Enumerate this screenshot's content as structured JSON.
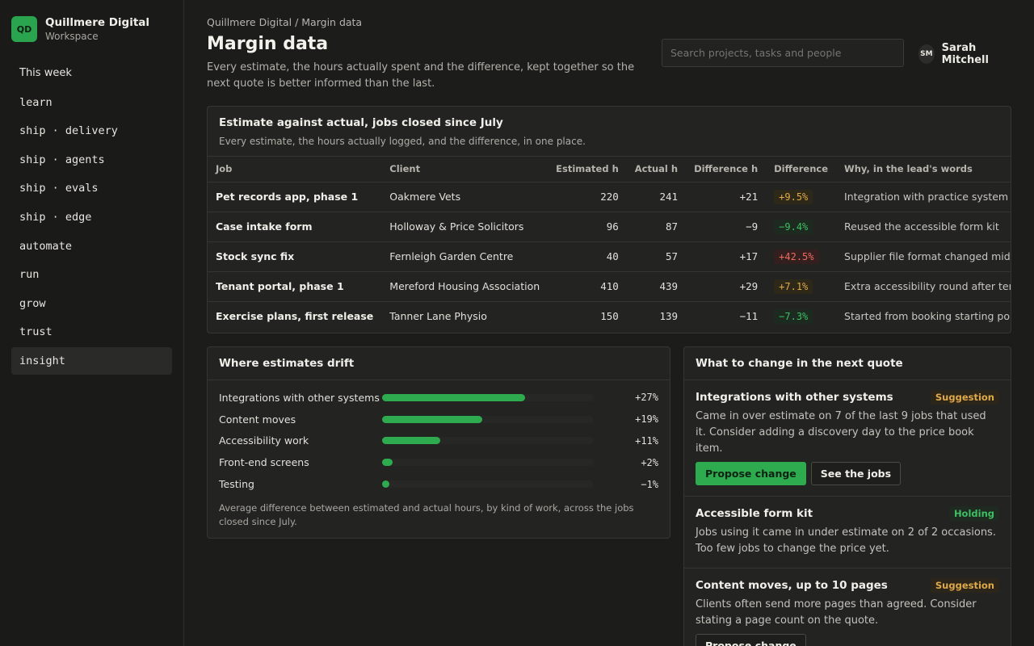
{
  "brand": {
    "initials": "QD",
    "name": "Quillmere Digital",
    "sub": "Workspace"
  },
  "nav": [
    {
      "label": "This week",
      "plain": true
    },
    {
      "label": "learn"
    },
    {
      "label": "ship · delivery"
    },
    {
      "label": "ship · agents"
    },
    {
      "label": "ship · evals"
    },
    {
      "label": "ship · edge"
    },
    {
      "label": "automate"
    },
    {
      "label": "run"
    },
    {
      "label": "grow"
    },
    {
      "label": "trust"
    },
    {
      "label": "insight",
      "active": true
    }
  ],
  "header": {
    "breadcrumb": "Quillmere Digital / Margin data",
    "title": "Margin data",
    "intro": "Every estimate, the hours actually spent and the difference, kept together so the next quote is better informed than the last.",
    "search_placeholder": "Search projects, tasks and people",
    "user_initials": "SM",
    "user_name": "Sarah Mitchell"
  },
  "jobs_card": {
    "title": "Estimate against actual, jobs closed since July",
    "subtitle": "Every estimate, the hours actually logged, and the difference, in one place.",
    "columns": [
      "Job",
      "Client",
      "Estimated h",
      "Actual h",
      "Difference h",
      "Difference",
      "Why, in the lead's words"
    ],
    "rows": [
      {
        "job": "Pet records app, phase 1",
        "client": "Oakmere Vets",
        "estimated": "220",
        "actual": "241",
        "diff_h": "+21",
        "diff_pct": "+9.5%",
        "tone": "amber",
        "why": "Integration with practice system took longer"
      },
      {
        "job": "Case intake form",
        "client": "Holloway & Price Solicitors",
        "estimated": "96",
        "actual": "87",
        "diff_h": "−9",
        "diff_pct": "−9.4%",
        "tone": "green",
        "why": "Reused the accessible form kit"
      },
      {
        "job": "Stock sync fix",
        "client": "Fernleigh Garden Centre",
        "estimated": "40",
        "actual": "57",
        "diff_h": "+17",
        "diff_pct": "+42.5%",
        "tone": "red",
        "why": "Supplier file format changed mid-job"
      },
      {
        "job": "Tenant portal, phase 1",
        "client": "Mereford Housing Association",
        "estimated": "410",
        "actual": "439",
        "diff_h": "+29",
        "diff_pct": "+7.1%",
        "tone": "amber",
        "why": "Extra accessibility round after tenant testing"
      },
      {
        "job": "Exercise plans, first release",
        "client": "Tanner Lane Physio",
        "estimated": "150",
        "actual": "139",
        "diff_h": "−11",
        "diff_pct": "−7.3%",
        "tone": "green",
        "why": "Started from booking starting point"
      }
    ]
  },
  "drift_card": {
    "title": "Where estimates drift",
    "items": [
      {
        "label": "Integrations with other systems",
        "value": "+27%",
        "pct": 27
      },
      {
        "label": "Content moves",
        "value": "+19%",
        "pct": 19
      },
      {
        "label": "Accessibility work",
        "value": "+11%",
        "pct": 11
      },
      {
        "label": "Front-end screens",
        "value": "+2%",
        "pct": 2
      },
      {
        "label": "Testing",
        "value": "−1%",
        "pct": -1
      }
    ],
    "note": "Average difference between estimated and actual hours, by kind of work, across the jobs closed since July."
  },
  "next_quote_card": {
    "title": "What to change in the next quote",
    "items": [
      {
        "title": "Integrations with other systems",
        "tag": "Suggestion",
        "tag_type": "suggestion",
        "body": "Came in over estimate on 7 of the last 9 jobs that used it. Consider adding a discovery day to the price book item.",
        "buttons": [
          {
            "label": "Propose change",
            "primary": true
          },
          {
            "label": "See the jobs"
          }
        ]
      },
      {
        "title": "Accessible form kit",
        "tag": "Holding",
        "tag_type": "holding",
        "body": "Jobs using it came in under estimate on 2 of 2 occasions. Too few jobs to change the price yet.",
        "buttons": []
      },
      {
        "title": "Content moves, up to 10 pages",
        "tag": "Suggestion",
        "tag_type": "suggestion",
        "body": "Clients often send more pages than agreed. Consider stating a page count on the quote.",
        "buttons": [
          {
            "label": "Propose change"
          }
        ]
      }
    ]
  },
  "colors": {
    "accent": "#2eab4f",
    "amber": "#e0a94a",
    "red": "#ef6b5e",
    "green": "#3fbf63"
  }
}
